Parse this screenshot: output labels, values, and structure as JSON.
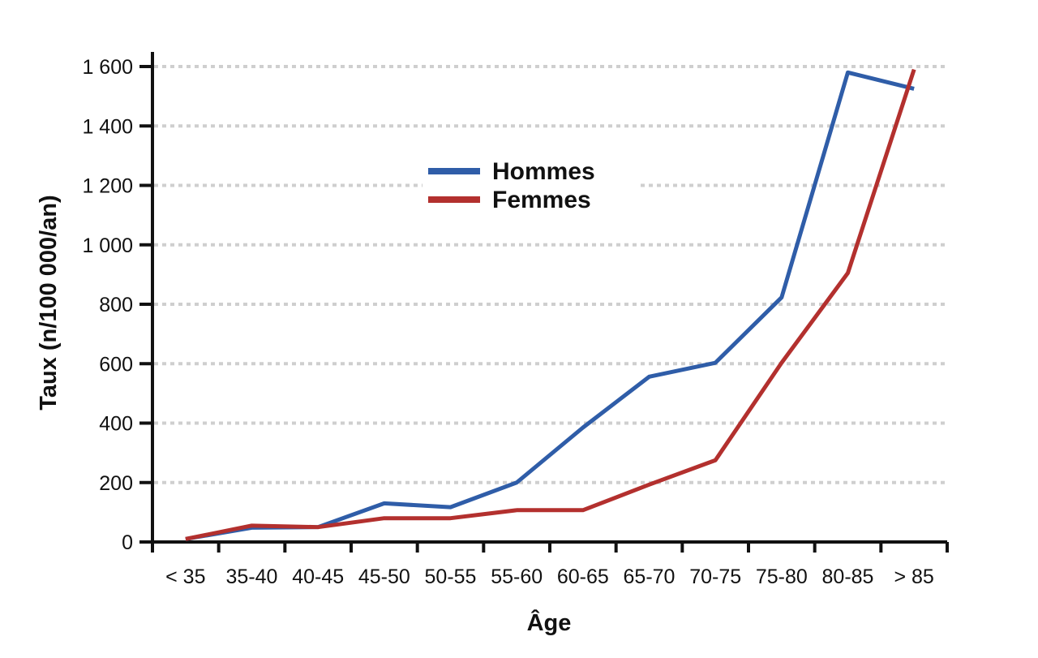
{
  "chart_data": {
    "type": "line",
    "categories": [
      "< 35",
      "35-40",
      "40-45",
      "45-50",
      "50-55",
      "55-60",
      "60-65",
      "65-70",
      "70-75",
      "75-80",
      "80-85",
      "> 85"
    ],
    "series": [
      {
        "name": "Hommes",
        "color": "#2f5da8",
        "values": [
          10,
          48,
          50,
          130,
          117,
          200,
          385,
          556,
          603,
          823,
          1580,
          1525
        ]
      },
      {
        "name": "Femmes",
        "color": "#b3302e",
        "values": [
          10,
          55,
          50,
          80,
          80,
          107,
          107,
          193,
          275,
          603,
          905,
          1590
        ]
      }
    ],
    "xlabel": "Âge",
    "ylabel": "Taux (n/100 000/an)",
    "ylim": [
      0,
      1600
    ],
    "yticks": [
      0,
      200,
      400,
      600,
      800,
      1000,
      1200,
      1400,
      1600
    ],
    "ytick_labels": [
      "0",
      "200",
      "400",
      "600",
      "800",
      "1 000",
      "1 200",
      "1 400",
      "1 600"
    ],
    "grid": true,
    "legend_position": "upper-center"
  }
}
